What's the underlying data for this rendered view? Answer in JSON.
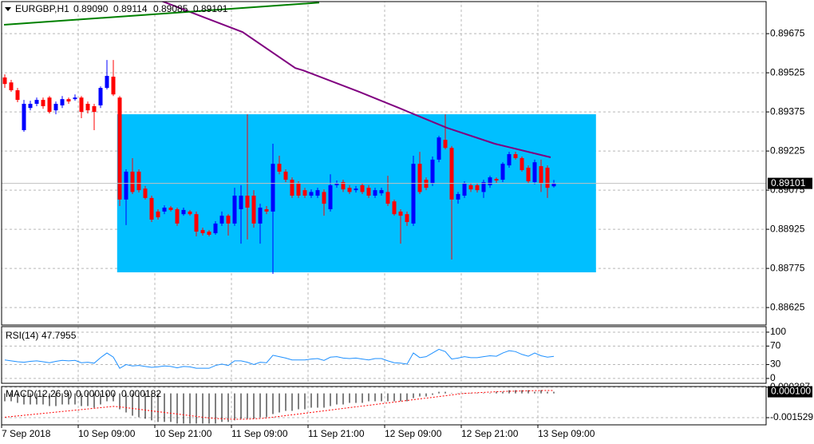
{
  "chart_data": [
    {
      "type": "candlestick",
      "title": "EURGBP,H1",
      "ohlc_labels": [
        "0.89090",
        "0.89114",
        "0.89085",
        "0.89101"
      ],
      "up_color": "#0000ff",
      "down_color": "#ff0000",
      "grid": true,
      "x": [
        0,
        1,
        2,
        3,
        4,
        5,
        6,
        7,
        8,
        9,
        10,
        11,
        12,
        13,
        14,
        15,
        16,
        17,
        18,
        19,
        20,
        21,
        22,
        23,
        24,
        25,
        26,
        27,
        28,
        29,
        30,
        31,
        32,
        33,
        34,
        35,
        36,
        37,
        38,
        39,
        40,
        41,
        42,
        43,
        44,
        45,
        46,
        47,
        48,
        49,
        50,
        51,
        52,
        53,
        54,
        55,
        56,
        57,
        58,
        59,
        60,
        61,
        62,
        63,
        64,
        65,
        66,
        67,
        68,
        69,
        70,
        71,
        72,
        73,
        74,
        75,
        76,
        77,
        78,
        79,
        80,
        81,
        82,
        83,
        84,
        85,
        86
      ],
      "open": [
        0.89507,
        0.89488,
        0.89458,
        0.89305,
        0.8939,
        0.89406,
        0.89421,
        0.8943,
        0.89381,
        0.894,
        0.89424,
        0.89424,
        0.8943,
        0.89406,
        0.89397,
        0.894,
        0.89467,
        0.8951,
        0.8943,
        0.89039,
        0.89146,
        0.89146,
        0.89081,
        0.89045,
        0.88993,
        0.88993,
        0.89008,
        0.89002,
        0.88983,
        0.88993,
        0.88983,
        0.88922,
        0.88916,
        0.8891,
        0.88947,
        0.88977,
        0.88947,
        0.89002,
        0.89054,
        0.89054,
        0.88947,
        0.89002,
        0.88993,
        0.89176,
        0.89146,
        0.89115,
        0.891,
        0.89075,
        0.89054,
        0.89054,
        0.89068,
        0.89002,
        0.89094,
        0.89106,
        0.89084,
        0.89075,
        0.89094,
        0.89084,
        0.89054,
        0.89063,
        0.89068,
        0.89032,
        0.88993,
        0.88983,
        0.88947,
        0.89176,
        0.89115,
        0.891,
        0.89192,
        0.89268,
        0.89237,
        0.89039,
        0.89054,
        0.89094,
        0.89094,
        0.89068,
        0.89094,
        0.89118,
        0.89115,
        0.8917,
        0.89213,
        0.89198,
        0.89161,
        0.89106,
        0.89167,
        0.89161,
        0.8909
      ],
      "high": [
        0.89519,
        0.89498,
        0.89467,
        0.89421,
        0.89418,
        0.8943,
        0.8943,
        0.89436,
        0.89415,
        0.89436,
        0.8943,
        0.89442,
        0.89436,
        0.89415,
        0.89406,
        0.89473,
        0.89574,
        0.89574,
        0.89436,
        0.89155,
        0.89198,
        0.89155,
        0.89091,
        0.89054,
        0.89002,
        0.89017,
        0.89014,
        0.89008,
        0.89008,
        0.88999,
        0.88993,
        0.88931,
        0.88922,
        0.88956,
        0.88993,
        0.88983,
        0.89084,
        0.89094,
        0.89366,
        0.89075,
        0.89023,
        0.89014,
        0.89253,
        0.89207,
        0.89155,
        0.89124,
        0.89109,
        0.89084,
        0.89078,
        0.89084,
        0.89078,
        0.89136,
        0.89112,
        0.89115,
        0.89094,
        0.89091,
        0.89103,
        0.89094,
        0.89084,
        0.89084,
        0.8913,
        0.89039,
        0.89002,
        0.88993,
        0.89207,
        0.89222,
        0.89124,
        0.89204,
        0.89283,
        0.89366,
        0.89244,
        0.89068,
        0.89109,
        0.89103,
        0.89103,
        0.89115,
        0.8913,
        0.89124,
        0.89182,
        0.89222,
        0.89222,
        0.89204,
        0.8917,
        0.89192,
        0.89192,
        0.8917,
        0.89114
      ],
      "low": [
        0.89467,
        0.89452,
        0.89412,
        0.89299,
        0.89381,
        0.89397,
        0.89387,
        0.89369,
        0.89366,
        0.8939,
        0.89406,
        0.89418,
        0.89351,
        0.89369,
        0.89305,
        0.8939,
        0.89461,
        0.89436,
        0.89014,
        0.88941,
        0.8906,
        0.89066,
        0.89039,
        0.88953,
        0.88962,
        0.88983,
        0.88993,
        0.88938,
        0.88977,
        0.88977,
        0.88898,
        0.88901,
        0.88898,
        0.88904,
        0.88938,
        0.88901,
        0.88938,
        0.8887,
        0.88886,
        0.88931,
        0.8887,
        0.88983,
        0.88754,
        0.89136,
        0.89106,
        0.89045,
        0.89045,
        0.89045,
        0.89045,
        0.89045,
        0.88977,
        0.88993,
        0.89084,
        0.89068,
        0.8906,
        0.89066,
        0.8906,
        0.89045,
        0.89045,
        0.89054,
        0.89014,
        0.88977,
        0.8887,
        0.88938,
        0.88938,
        0.8906,
        0.89075,
        0.89091,
        0.89182,
        0.89231,
        0.88809,
        0.89023,
        0.89045,
        0.89068,
        0.89066,
        0.89045,
        0.89084,
        0.89103,
        0.89106,
        0.89161,
        0.89192,
        0.89146,
        0.891,
        0.89097,
        0.89068,
        0.89045,
        0.89085
      ],
      "close": [
        0.89482,
        0.89458,
        0.89421,
        0.89406,
        0.89406,
        0.89421,
        0.89397,
        0.89375,
        0.89406,
        0.89424,
        0.89415,
        0.8943,
        0.89375,
        0.89381,
        0.89375,
        0.89467,
        0.89513,
        0.89442,
        0.89039,
        0.89146,
        0.89068,
        0.89075,
        0.89045,
        0.88962,
        0.88971,
        0.89008,
        0.88999,
        0.88947,
        0.88999,
        0.88983,
        0.88916,
        0.8891,
        0.88904,
        0.88947,
        0.88977,
        0.88947,
        0.89054,
        0.89054,
        0.89008,
        0.88947,
        0.89008,
        0.88993,
        0.89176,
        0.89146,
        0.89115,
        0.89054,
        0.89054,
        0.89054,
        0.89068,
        0.89075,
        0.89023,
        0.89094,
        0.891,
        0.89078,
        0.89068,
        0.89081,
        0.89068,
        0.89054,
        0.89075,
        0.89075,
        0.89023,
        0.88983,
        0.88977,
        0.88953,
        0.89176,
        0.89068,
        0.89084,
        0.89192,
        0.89277,
        0.89237,
        0.89039,
        0.8906,
        0.891,
        0.89078,
        0.89075,
        0.89106,
        0.89124,
        0.89112,
        0.89176,
        0.89213,
        0.89198,
        0.89152,
        0.89109,
        0.89182,
        0.891,
        0.89084,
        0.89101
      ],
      "xlim": [
        -0.75,
        119.25
      ],
      "xticks": [
        {
          "value": -0.5,
          "label": "7 Sep 2018"
        },
        {
          "value": 11.5,
          "label": "10 Sep 09:00"
        },
        {
          "value": 23.5,
          "label": "10 Sep 21:00"
        },
        {
          "value": 35.5,
          "label": "11 Sep 09:00"
        },
        {
          "value": 47.5,
          "label": "11 Sep 21:00"
        },
        {
          "value": 59.5,
          "label": "12 Sep 09:00"
        },
        {
          "value": 71.5,
          "label": "12 Sep 21:00"
        },
        {
          "value": 83.5,
          "label": "13 Sep 09:00"
        }
      ],
      "ylim": [
        0.88558,
        0.89804
      ],
      "yticks": [
        0.89675,
        0.89525,
        0.89375,
        0.89225,
        0.89075,
        0.88925,
        0.88775,
        0.88625
      ],
      "rectangle": {
        "color": "#00bfff",
        "x": [
          17.6,
          92.6
        ],
        "y": [
          0.89366,
          0.8876
        ]
      },
      "lines": [
        {
          "color": "#800080",
          "x": [
            24.25,
            37.25,
            45.5,
            46.75,
            55.5,
            61.75,
            69.25,
            76.75,
            85.5
          ],
          "values": [
            0.89803,
            0.89681,
            0.89543,
            0.89534,
            0.89452,
            0.8939,
            0.89314,
            0.89253,
            0.89201
          ]
        },
        {
          "color": "#008000",
          "x": [
            -0.125,
            49.25
          ],
          "values": [
            0.89709,
            0.89794
          ]
        }
      ]
    },
    {
      "type": "line",
      "title": "RSI(14)",
      "series": [
        {
          "color": "#1e90ff",
          "values": [
            40,
            38,
            36,
            35,
            37,
            38,
            36,
            34,
            37,
            39,
            38,
            39,
            34,
            35,
            33,
            45,
            55,
            46,
            22,
            30,
            27,
            28,
            26,
            24,
            25,
            27,
            26,
            23,
            26,
            25,
            22,
            22,
            22,
            28,
            31,
            28,
            38,
            38,
            35,
            30,
            35,
            34,
            50,
            47,
            44,
            40,
            40,
            40,
            42,
            43,
            39,
            46,
            47,
            44,
            43,
            44,
            42,
            40,
            43,
            43,
            38,
            34,
            33,
            31,
            55,
            45,
            47,
            55,
            63,
            58,
            42,
            44,
            47,
            45,
            45,
            47,
            49,
            48,
            55,
            60,
            58,
            52,
            48,
            55,
            49,
            46,
            47.7955
          ]
        }
      ],
      "ylim": [
        -10.5,
        112
      ],
      "yticks": [
        100,
        70,
        30,
        0
      ]
    },
    {
      "type": "macd",
      "title": "MACD(12,26,9)",
      "series": [
        {
          "type": "bar",
          "color": "#000000",
          "value_label": "0.000100",
          "values": [
            -0.0005,
            -0.0005,
            -0.0006,
            -0.0007,
            -0.0007,
            -0.0007,
            -0.0007,
            -0.0008,
            -0.0008,
            -0.0007,
            -0.0007,
            -0.0007,
            -0.0008,
            -0.0008,
            -0.0009,
            -0.0007,
            -0.0005,
            -0.0005,
            -0.001,
            -0.0012,
            -0.0014,
            -0.0015,
            -0.0016,
            -0.0017,
            -0.0018,
            -0.0018,
            -0.0018,
            -0.0019,
            -0.0019,
            -0.0019,
            -0.0019,
            -0.0019,
            -0.0019,
            -0.0019,
            -0.0018,
            -0.0018,
            -0.0017,
            -0.0016,
            -0.0016,
            -0.0016,
            -0.0015,
            -0.0015,
            -0.0013,
            -0.0012,
            -0.0011,
            -0.0011,
            -0.001,
            -0.001,
            -0.0009,
            -0.0009,
            -0.0009,
            -0.0008,
            -0.0007,
            -0.0007,
            -0.0006,
            -0.0006,
            -0.0006,
            -0.0005,
            -0.0005,
            -0.0005,
            -0.0005,
            -0.0005,
            -0.0005,
            -0.0005,
            -0.0003,
            -0.0002,
            -0.0002,
            -0.0001,
            0.0001,
            0.0001,
            0,
            0,
            0,
            0,
            0,
            0,
            0,
            0.0001,
            0.0001,
            0.0002,
            0.0002,
            0.0002,
            0.0002,
            0.0001,
            0.0002,
            0.0001,
            0.0001
          ]
        },
        {
          "type": "line",
          "color": "#ff0000",
          "value_label": "0.000182",
          "values": [
            -0.0015,
            -0.00146,
            -0.00142,
            -0.00138,
            -0.00134,
            -0.0013,
            -0.00126,
            -0.00122,
            -0.00118,
            -0.00114,
            -0.0011,
            -0.00106,
            -0.00102,
            -0.00098,
            -0.00094,
            -0.0009,
            -0.00086,
            -0.00082,
            -0.00085,
            -0.0009,
            -0.00095,
            -0.001,
            -0.00105,
            -0.0011,
            -0.00115,
            -0.0012,
            -0.00125,
            -0.0013,
            -0.00135,
            -0.0014,
            -0.00145,
            -0.0015,
            -0.00155,
            -0.00158,
            -0.0016,
            -0.00162,
            -0.00163,
            -0.00163,
            -0.00162,
            -0.0016,
            -0.00158,
            -0.00155,
            -0.0015,
            -0.00145,
            -0.0014,
            -0.00135,
            -0.0013,
            -0.00125,
            -0.0012,
            -0.00115,
            -0.0011,
            -0.00105,
            -0.001,
            -0.00095,
            -0.0009,
            -0.00085,
            -0.0008,
            -0.00075,
            -0.0007,
            -0.00065,
            -0.0006,
            -0.00055,
            -0.0005,
            -0.00045,
            -0.0004,
            -0.00035,
            -0.0003,
            -0.00025,
            -0.0002,
            -0.00015,
            -0.0001,
            -5e-05,
            0,
            2e-05,
            4e-05,
            6e-05,
            8e-05,
            0.0001,
            0.00012,
            0.00013,
            0.00014,
            0.00015,
            0.00016,
            0.00017,
            0.000175,
            0.00018,
            0.000182
          ]
        }
      ],
      "ylim": [
        -0.00198,
        0.00043
      ],
      "yticks": [
        0.000387,
        -0.001529
      ]
    }
  ]
}
